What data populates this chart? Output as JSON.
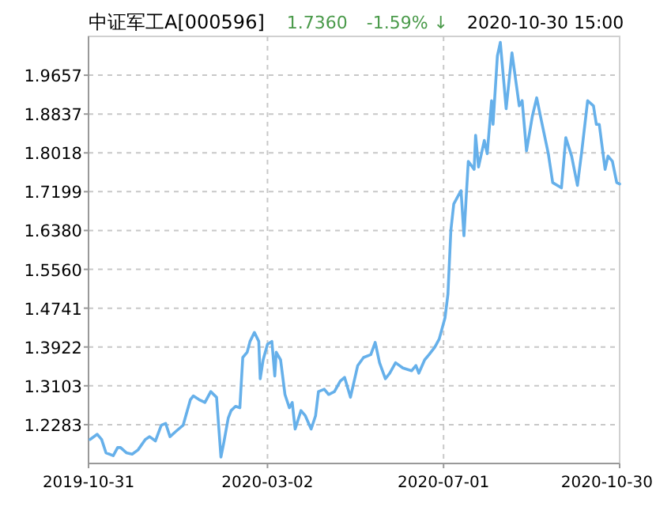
{
  "chart_data": {
    "type": "line",
    "title": "中证军工A[000596]",
    "annotations": [
      "1.7360",
      "-1.59% ↓",
      "2020-10-30 15:00"
    ],
    "xlim": [
      "2019-10-31",
      "2020-10-30"
    ],
    "xticks": [
      "2019-10-31",
      "2020-03-02",
      "2020-07-01",
      "2020-10-30"
    ],
    "ylim": [
      1.1464,
      2.0476
    ],
    "yticks": [
      1.2283,
      1.3103,
      1.3922,
      1.4741,
      {
        "value": 1.556,
        "label": "1.5560"
      },
      {
        "value": 1.638,
        "label": "1.6380"
      },
      1.7199,
      1.8018,
      1.8837,
      1.9657
    ],
    "grid": true,
    "marker": "none",
    "line_style": "solid",
    "series": [
      {
        "color": "#66b0ea",
        "x": [
          "2019-11-01",
          "2019-11-06",
          "2019-11-09",
          "2019-11-12",
          "2019-11-17",
          "2019-11-20",
          "2019-11-22",
          "2019-11-26",
          "2019-11-30",
          "2019-12-04",
          "2019-12-09",
          "2019-12-12",
          "2019-12-16",
          "2019-12-20",
          "2019-12-23",
          "2019-12-26",
          "2019-12-30",
          "2020-01-04",
          "2020-01-09",
          "2020-01-11",
          "2020-01-15",
          "2020-01-19",
          "2020-01-23",
          "2020-01-27",
          "2020-01-30",
          "2020-02-01",
          "2020-02-04",
          "2020-02-06",
          "2020-02-09",
          "2020-02-12",
          "2020-02-14",
          "2020-02-17",
          "2020-02-19",
          "2020-02-22",
          "2020-02-25",
          "2020-02-26",
          "2020-02-28",
          "2020-03-02",
          "2020-03-05",
          "2020-03-07",
          "2020-03-08",
          "2020-03-11",
          "2020-03-14",
          "2020-03-17",
          "2020-03-19",
          "2020-03-21",
          "2020-03-25",
          "2020-03-28",
          "2020-04-01",
          "2020-04-04",
          "2020-04-06",
          "2020-04-10",
          "2020-04-13",
          "2020-04-17",
          "2020-04-21",
          "2020-04-24",
          "2020-04-28",
          "2020-05-03",
          "2020-05-07",
          "2020-05-12",
          "2020-05-15",
          "2020-05-18",
          "2020-05-22",
          "2020-05-25",
          "2020-05-29",
          "2020-06-03",
          "2020-06-09",
          "2020-06-12",
          "2020-06-14",
          "2020-06-18",
          "2020-06-21",
          "2020-06-25",
          "2020-06-28",
          "2020-07-02",
          "2020-07-04",
          "2020-07-06",
          "2020-07-08",
          "2020-07-11",
          "2020-07-13",
          "2020-07-15",
          "2020-07-18",
          "2020-07-22",
          "2020-07-23",
          "2020-07-25",
          "2020-07-29",
          "2020-07-31",
          "2020-08-03",
          "2020-08-04",
          "2020-08-07",
          "2020-08-09",
          "2020-08-13",
          "2020-08-17",
          "2020-08-22",
          "2020-08-24",
          "2020-08-27",
          "2020-08-31",
          "2020-09-03",
          "2020-09-06",
          "2020-09-11",
          "2020-09-14",
          "2020-09-20",
          "2020-09-23",
          "2020-09-27",
          "2020-10-01",
          "2020-10-04",
          "2020-10-08",
          "2020-10-12",
          "2020-10-14",
          "2020-10-16",
          "2020-10-20",
          "2020-10-22",
          "2020-10-25",
          "2020-10-28",
          "2020-10-30"
        ],
        "values": [
          1.197,
          1.208,
          1.197,
          1.169,
          1.163,
          1.18,
          1.18,
          1.169,
          1.166,
          1.175,
          1.197,
          1.203,
          1.194,
          1.227,
          1.231,
          1.203,
          1.214,
          1.227,
          1.281,
          1.289,
          1.281,
          1.275,
          1.298,
          1.286,
          1.16,
          1.191,
          1.242,
          1.258,
          1.267,
          1.264,
          1.37,
          1.381,
          1.404,
          1.423,
          1.404,
          1.325,
          1.365,
          1.398,
          1.404,
          1.331,
          1.381,
          1.365,
          1.292,
          1.264,
          1.275,
          1.219,
          1.258,
          1.247,
          1.219,
          1.247,
          1.298,
          1.303,
          1.292,
          1.298,
          1.32,
          1.328,
          1.286,
          1.353,
          1.37,
          1.376,
          1.402,
          1.359,
          1.325,
          1.337,
          1.359,
          1.348,
          1.342,
          1.353,
          1.337,
          1.365,
          1.376,
          1.392,
          1.409,
          1.454,
          1.504,
          1.638,
          1.694,
          1.711,
          1.722,
          1.627,
          1.784,
          1.767,
          1.839,
          1.772,
          1.828,
          1.8,
          1.912,
          1.862,
          2.007,
          2.035,
          1.895,
          2.013,
          1.901,
          1.912,
          1.806,
          1.879,
          1.918,
          1.873,
          1.8,
          1.739,
          1.728,
          1.834,
          1.795,
          1.733,
          1.806,
          1.912,
          1.901,
          1.862,
          1.862,
          1.767,
          1.795,
          1.784,
          1.739,
          1.736
        ]
      }
    ]
  }
}
